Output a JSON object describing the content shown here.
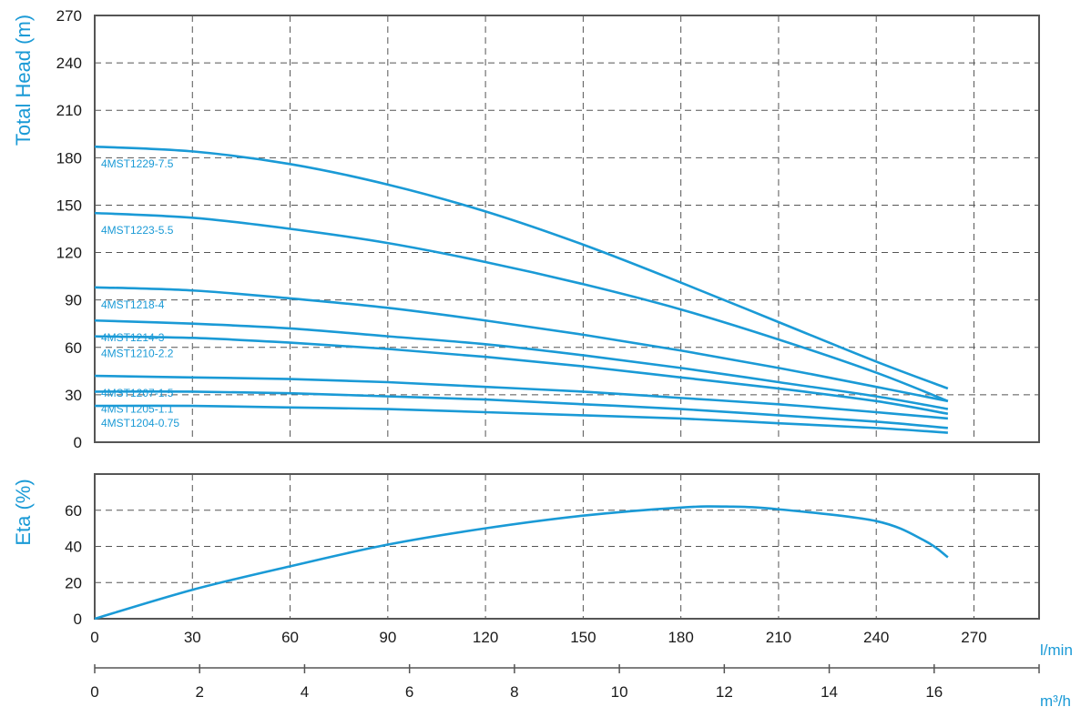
{
  "colors": {
    "curve": "#1a9ad6",
    "frame": "#555555",
    "grid": "#555555",
    "text": "#1a1a1a"
  },
  "chart_data": [
    {
      "type": "line",
      "ylabel": "Total Head (m)",
      "xlim": [
        0,
        290
      ],
      "ylim": [
        0,
        270
      ],
      "yticks": [
        0,
        30,
        60,
        90,
        120,
        150,
        180,
        210,
        240,
        270
      ],
      "grid": true,
      "series": [
        {
          "name": "4MST1229-7.5",
          "x": [
            0,
            30,
            60,
            90,
            120,
            150,
            180,
            210,
            240,
            262
          ],
          "y": [
            187,
            184,
            176,
            163,
            146,
            125,
            101,
            76,
            51,
            34
          ]
        },
        {
          "name": "4MST1223-5.5",
          "x": [
            0,
            30,
            60,
            90,
            120,
            150,
            180,
            210,
            240,
            262
          ],
          "y": [
            145,
            142,
            135,
            126,
            114,
            100,
            84,
            65,
            44,
            26
          ]
        },
        {
          "name": "4MST1218-4",
          "x": [
            0,
            30,
            60,
            90,
            120,
            150,
            180,
            210,
            240,
            262
          ],
          "y": [
            98,
            96,
            91,
            85,
            77,
            68,
            58,
            47,
            35,
            26
          ]
        },
        {
          "name": "4MST1214-3",
          "x": [
            0,
            30,
            60,
            90,
            120,
            150,
            180,
            210,
            240,
            262
          ],
          "y": [
            77,
            75,
            72,
            67,
            62,
            55,
            47,
            38,
            29,
            21
          ]
        },
        {
          "name": "4MST1210-2.2",
          "x": [
            0,
            30,
            60,
            90,
            120,
            150,
            180,
            210,
            240,
            262
          ],
          "y": [
            67,
            66,
            63,
            59,
            54,
            48,
            41,
            34,
            26,
            18
          ]
        },
        {
          "name": "4MST1207-1.5",
          "x": [
            0,
            30,
            60,
            90,
            120,
            150,
            180,
            210,
            240,
            262
          ],
          "y": [
            42,
            41,
            40,
            38,
            35,
            32,
            28,
            24,
            19,
            15
          ]
        },
        {
          "name": "4MST1205-1.1",
          "x": [
            0,
            30,
            60,
            90,
            120,
            150,
            180,
            210,
            240,
            262
          ],
          "y": [
            32,
            32,
            31,
            29,
            27,
            24,
            21,
            17,
            13,
            9
          ]
        },
        {
          "name": "4MST1204-0.75",
          "x": [
            0,
            30,
            60,
            90,
            120,
            150,
            180,
            210,
            240,
            262
          ],
          "y": [
            23,
            23,
            22,
            21,
            19,
            17,
            15,
            12,
            9,
            6
          ]
        }
      ]
    },
    {
      "type": "line",
      "ylabel": "Eta (%)",
      "xlim": [
        0,
        290
      ],
      "ylim": [
        0,
        80
      ],
      "yticks": [
        0,
        20,
        40,
        60
      ],
      "grid": true,
      "series": [
        {
          "x": [
            0,
            30,
            60,
            90,
            120,
            150,
            180,
            195,
            210,
            240,
            255,
            262
          ],
          "y": [
            0,
            16,
            29,
            41,
            50,
            57,
            61.5,
            62,
            60.5,
            54,
            43,
            34
          ]
        }
      ]
    }
  ],
  "x_axes": {
    "lmin": {
      "unit": "l/min",
      "ticks": [
        0,
        30,
        60,
        90,
        120,
        150,
        180,
        210,
        240,
        270
      ],
      "lim": [
        0,
        290
      ]
    },
    "m3h": {
      "unit": "m³/h",
      "ticks": [
        0,
        2,
        4,
        6,
        8,
        10,
        12,
        14,
        16
      ],
      "lim": [
        0,
        18
      ]
    }
  }
}
